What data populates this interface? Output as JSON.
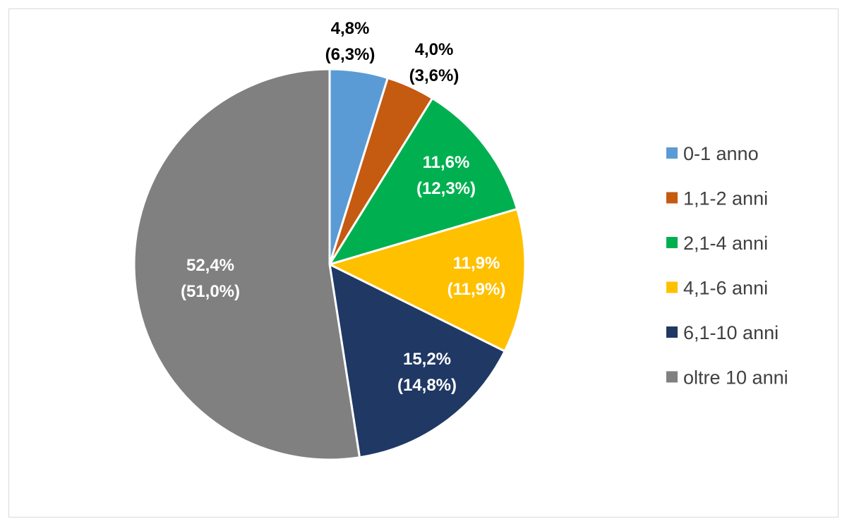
{
  "chart_data": {
    "type": "pie",
    "title": "",
    "legend_position": "right",
    "series": [
      {
        "name": "",
        "values": [
          4.8,
          4.0,
          11.6,
          11.9,
          15.2,
          52.4
        ],
        "secondary_values": [
          6.3,
          3.6,
          12.3,
          11.9,
          14.8,
          51.0
        ]
      }
    ],
    "categories": [
      "0-1 anno",
      "1,1-2 anni",
      "2,1-4 anni",
      "4,1-6 anni",
      "6,1-10 anni",
      "oltre 10 anni"
    ],
    "colors": [
      "#5b9bd5",
      "#c55a11",
      "#00b050",
      "#ffc000",
      "#203864",
      "#808080"
    ],
    "label_colors": [
      "#000000",
      "#000000",
      "#ffffff",
      "#ffffff",
      "#ffffff",
      "#ffffff"
    ],
    "data_labels": [
      {
        "line1": "4,8%",
        "line2": "(6,3%)"
      },
      {
        "line1": "4,0%",
        "line2": "(3,6%)"
      },
      {
        "line1": "11,6%",
        "line2": "(12,3%)"
      },
      {
        "line1": "11,9%",
        "line2": "(11,9%)"
      },
      {
        "line1": "15,2%",
        "line2": "(14,8%)"
      },
      {
        "line1": "52,4%",
        "line2": "(51,0%)"
      }
    ]
  }
}
